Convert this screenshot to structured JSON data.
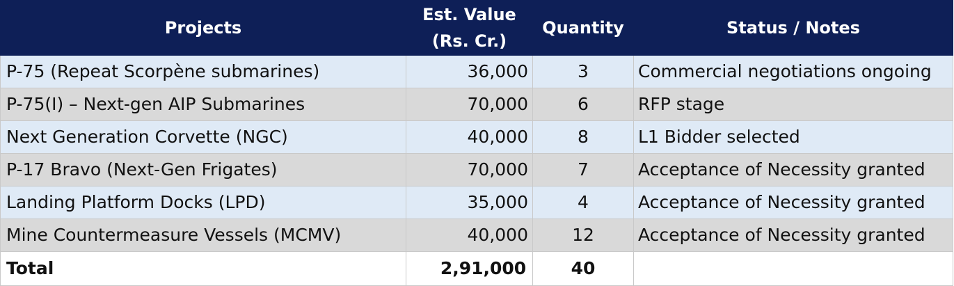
{
  "headers": {
    "projects": "Projects",
    "value_line1": "Est. Value",
    "value_line2": "(Rs. Cr.)",
    "quantity": "Quantity",
    "status": "Status / Notes"
  },
  "rows": [
    {
      "project": "P-75 (Repeat Scorpène submarines)",
      "value": "36,000",
      "quantity": "3",
      "status": "Commercial negotiations ongoing"
    },
    {
      "project": "P-75(I) – Next-gen AIP Submarines",
      "value": "70,000",
      "quantity": "6",
      "status": "RFP stage"
    },
    {
      "project": "Next Generation Corvette (NGC)",
      "value": "40,000",
      "quantity": "8",
      "status": "L1 Bidder selected"
    },
    {
      "project": "P-17 Bravo (Next-Gen Frigates)",
      "value": "70,000",
      "quantity": "7",
      "status": "Acceptance of Necessity granted"
    },
    {
      "project": "Landing Platform Docks (LPD)",
      "value": "35,000",
      "quantity": "4",
      "status": "Acceptance of Necessity granted"
    },
    {
      "project": "Mine Countermeasure Vessels (MCMV)",
      "value": "40,000",
      "quantity": "12",
      "status": "Acceptance of Necessity granted"
    }
  ],
  "total": {
    "label": "Total",
    "value": "2,91,000",
    "quantity": "40",
    "status": ""
  },
  "colors": {
    "header_bg": "#0e1f57",
    "row_blue": "#dfeaf6",
    "row_gray": "#d9d9d9"
  }
}
